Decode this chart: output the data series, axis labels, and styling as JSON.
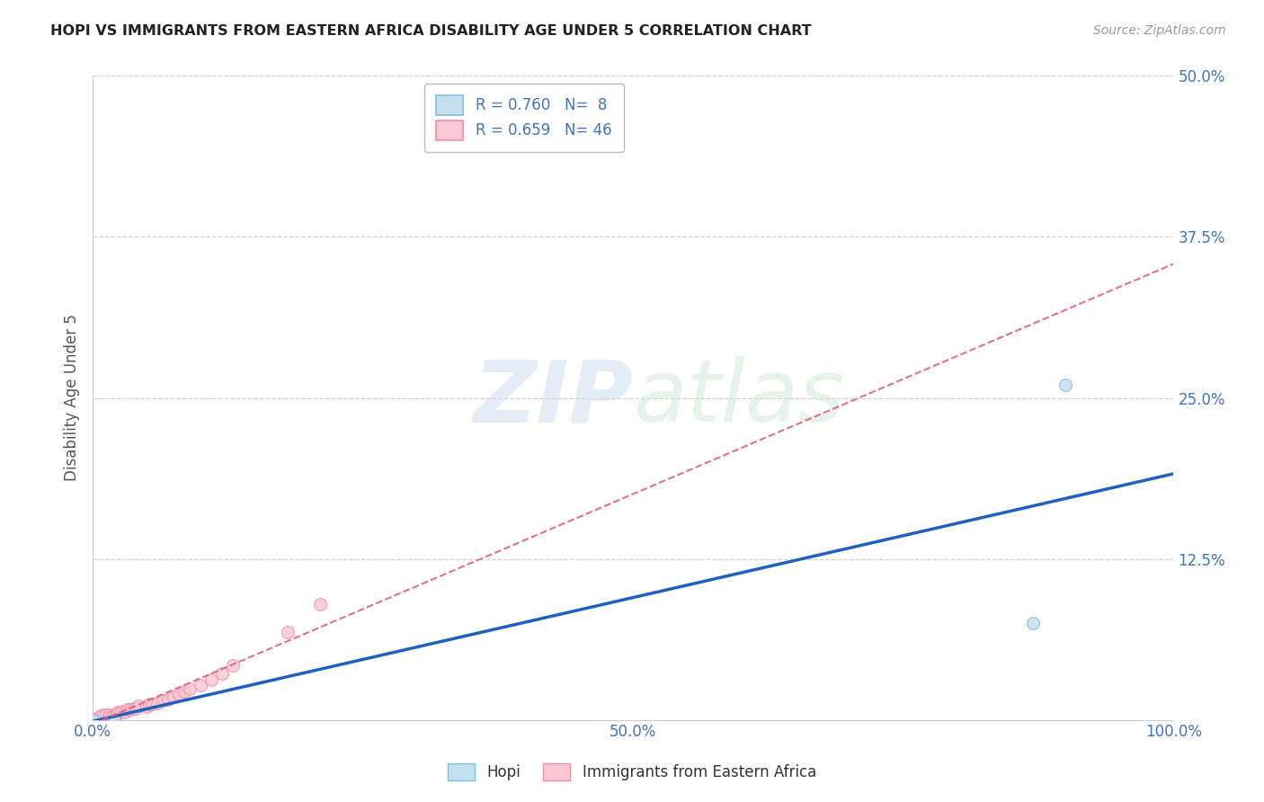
{
  "title": "HOPI VS IMMIGRANTS FROM EASTERN AFRICA DISABILITY AGE UNDER 5 CORRELATION CHART",
  "source": "Source: ZipAtlas.com",
  "ylabel": "Disability Age Under 5",
  "background_color": "#ffffff",
  "hopi_color": "#7fbfdf",
  "hopi_fill": "#c5dff0",
  "eastern_color": "#f090a8",
  "eastern_fill": "#fac8d4",
  "trendline_hopi_color": "#2060c0",
  "trendline_eastern_color": "#e06080",
  "hopi_R": 0.76,
  "hopi_N": 8,
  "eastern_R": 0.659,
  "eastern_N": 46,
  "hopi_points_x": [
    0.0,
    0.0,
    0.0,
    0.0,
    0.0,
    0.02,
    0.87,
    0.9
  ],
  "hopi_points_y": [
    0.0,
    0.0,
    0.0,
    0.0,
    0.0,
    0.0,
    0.075,
    0.26
  ],
  "eastern_points_x": [
    0.0,
    0.0,
    0.0,
    0.0,
    0.0,
    0.0,
    0.0,
    0.005,
    0.005,
    0.005,
    0.005,
    0.007,
    0.01,
    0.01,
    0.01,
    0.012,
    0.015,
    0.016,
    0.018,
    0.02,
    0.022,
    0.023,
    0.025,
    0.027,
    0.03,
    0.032,
    0.035,
    0.038,
    0.04,
    0.042,
    0.05,
    0.052,
    0.055,
    0.06,
    0.065,
    0.07,
    0.075,
    0.08,
    0.085,
    0.09,
    0.1,
    0.11,
    0.12,
    0.13,
    0.18,
    0.21
  ],
  "eastern_points_y": [
    0.0,
    0.0,
    0.0,
    0.0,
    0.0,
    0.0,
    0.0,
    0.0,
    0.0,
    0.0,
    0.002,
    0.003,
    0.0,
    0.002,
    0.004,
    0.004,
    0.002,
    0.004,
    0.003,
    0.003,
    0.005,
    0.006,
    0.005,
    0.007,
    0.006,
    0.008,
    0.008,
    0.009,
    0.009,
    0.011,
    0.01,
    0.012,
    0.012,
    0.013,
    0.015,
    0.016,
    0.018,
    0.02,
    0.022,
    0.024,
    0.027,
    0.031,
    0.036,
    0.042,
    0.068,
    0.09
  ],
  "watermark_zip": "ZIP",
  "watermark_atlas": "atlas",
  "xlim": [
    0.0,
    1.0
  ],
  "ylim": [
    0.0,
    0.5
  ],
  "xticks": [
    0.0,
    0.5,
    1.0
  ],
  "yticks": [
    0.0,
    0.125,
    0.25,
    0.375,
    0.5
  ],
  "xticklabels": [
    "0.0%",
    "50.0%",
    "100.0%"
  ],
  "yticklabels": [
    "",
    "12.5%",
    "25.0%",
    "37.5%",
    "50.0%"
  ],
  "grid_yticks": [
    0.125,
    0.25,
    0.375,
    0.5
  ],
  "grid_color": "#d0d0d0",
  "axis_color": "#4472c4",
  "title_color": "#222222",
  "source_color": "#999999",
  "ylabel_color": "#555555"
}
